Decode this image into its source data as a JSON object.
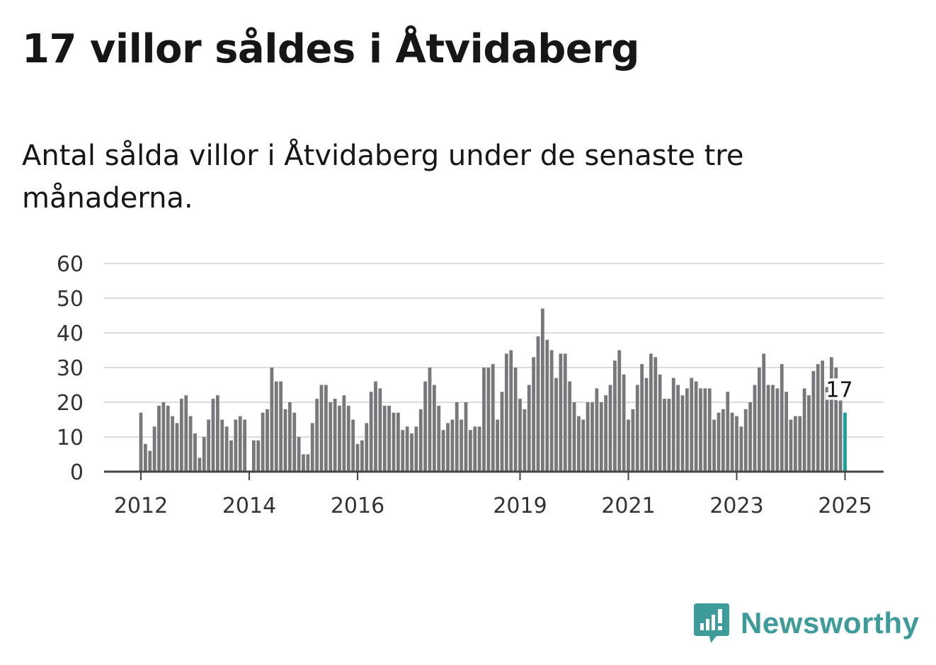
{
  "title": "17 villor såldes i Åtvidaberg",
  "subtitle": "Antal sålda villor i Åtvidaberg under de senaste tre månaderna.",
  "brand": "Newsworthy",
  "colors": {
    "bar": "#78777c",
    "highlight": "#15a09d",
    "grid": "#dcdcdc",
    "axis": "#444444",
    "brand": "#3d9b99"
  },
  "chart_data": {
    "type": "bar",
    "ylim": [
      0,
      60
    ],
    "y_ticks": [
      0,
      10,
      20,
      30,
      40,
      50,
      60
    ],
    "x_tick_labels": [
      "2012",
      "2014",
      "2016",
      "2019",
      "2021",
      "2023",
      "2025"
    ],
    "x_tick_indices": [
      0,
      24,
      48,
      84,
      108,
      132,
      156
    ],
    "grid": true,
    "highlight_label": "17",
    "start_month": "2012-01",
    "values": [
      17,
      8,
      6,
      13,
      19,
      20,
      19,
      16,
      14,
      21,
      22,
      16,
      11,
      4,
      10,
      15,
      21,
      22,
      15,
      13,
      9,
      15,
      16,
      15,
      0,
      9,
      9,
      17,
      18,
      30,
      26,
      26,
      18,
      20,
      17,
      10,
      5,
      5,
      14,
      21,
      25,
      25,
      20,
      21,
      19,
      22,
      19,
      15,
      8,
      9,
      14,
      23,
      26,
      24,
      19,
      19,
      17,
      17,
      12,
      13,
      11,
      13,
      18,
      26,
      30,
      25,
      19,
      12,
      14,
      15,
      20,
      15,
      20,
      12,
      13,
      13,
      30,
      30,
      31,
      15,
      23,
      34,
      35,
      30,
      21,
      18,
      25,
      33,
      39,
      47,
      38,
      35,
      27,
      34,
      34,
      26,
      20,
      16,
      15,
      20,
      20,
      24,
      20,
      22,
      25,
      32,
      35,
      28,
      15,
      18,
      25,
      31,
      27,
      34,
      33,
      28,
      21,
      21,
      27,
      25,
      22,
      24,
      27,
      26,
      24,
      24,
      24,
      15,
      17,
      18,
      23,
      17,
      16,
      13,
      18,
      20,
      25,
      30,
      34,
      25,
      25,
      24,
      31,
      23,
      15,
      16,
      16,
      24,
      22,
      29,
      31,
      32,
      26,
      33,
      30,
      22,
      17
    ]
  }
}
